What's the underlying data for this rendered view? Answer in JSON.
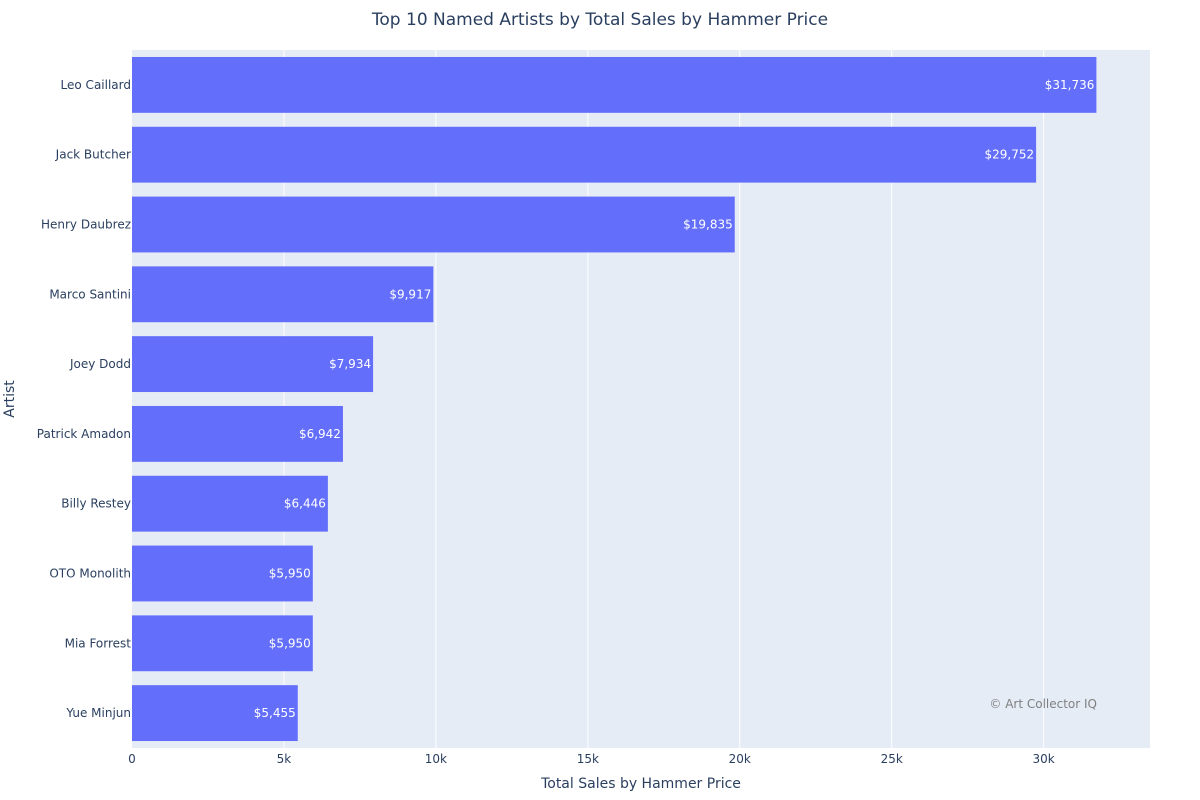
{
  "chart_data": {
    "type": "bar",
    "orientation": "horizontal",
    "title": "Top 10 Named Artists by Total Sales by Hammer Price",
    "xlabel": "Total Sales by Hammer Price",
    "ylabel": "Artist",
    "xlim": [
      0,
      33500
    ],
    "x_ticks": [
      {
        "value": 0,
        "label": "0"
      },
      {
        "value": 5000,
        "label": "5k"
      },
      {
        "value": 10000,
        "label": "10k"
      },
      {
        "value": 15000,
        "label": "15k"
      },
      {
        "value": 20000,
        "label": "20k"
      },
      {
        "value": 25000,
        "label": "25k"
      },
      {
        "value": 30000,
        "label": "30k"
      }
    ],
    "grid": true,
    "bar_color": "#636efa",
    "plot_background": "#e5ecf6",
    "categories": [
      "Leo Caillard",
      "Jack Butcher",
      "Henry Daubrez",
      "Marco Santini",
      "Joey Dodd",
      "Patrick Amadon",
      "Billy Restey",
      "OTO Monolith",
      "Mia Forrest",
      "Yue Minjun"
    ],
    "values": [
      31736,
      29752,
      19835,
      9917,
      7934,
      6942,
      6446,
      5950,
      5950,
      5455
    ],
    "data_labels": [
      "$31,736",
      "$29,752",
      "$19,835",
      "$9,917",
      "$7,934",
      "$6,942",
      "$6,446",
      "$5,950",
      "$5,950",
      "$5,455"
    ],
    "annotation": "© Art Collector IQ"
  }
}
